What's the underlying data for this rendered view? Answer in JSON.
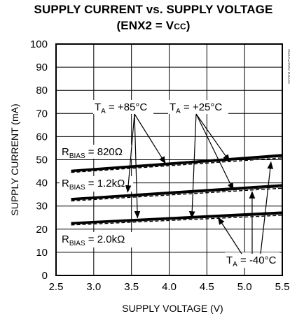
{
  "chart_data": {
    "type": "line",
    "title_line1": "SUPPLY CURRENT vs. SUPPLY VOLTAGE",
    "title_line2_prefix": "(ENX2 = V",
    "title_line2_sub": "CC",
    "title_line2_suffix": ")",
    "xlabel": "SUPPLY VOLTAGE (V)",
    "ylabel": "SUPPLY CURRENT (mA)",
    "xlim": [
      2.5,
      5.5
    ],
    "ylim": [
      0,
      100
    ],
    "xticks": [
      "2.5",
      "3.0",
      "3.5",
      "4.0",
      "4.5",
      "5.0",
      "5.5"
    ],
    "yticks": [
      "0",
      "10",
      "20",
      "30",
      "40",
      "50",
      "60",
      "70",
      "80",
      "90",
      "100"
    ],
    "grid": true,
    "x": [
      2.7,
      5.5
    ],
    "series": [
      {
        "values": [
          45.2,
          52.0
        ],
        "rbias": "820",
        "temp": "+85"
      },
      {
        "values": [
          44.8,
          51.4
        ],
        "rbias": "820",
        "temp": "+25"
      },
      {
        "values": [
          44.5,
          50.8
        ],
        "rbias": "820",
        "temp": "-40"
      },
      {
        "values": [
          33.0,
          39.0
        ],
        "rbias": "1.2k",
        "temp": "+85"
      },
      {
        "values": [
          32.6,
          38.3
        ],
        "rbias": "1.2k",
        "temp": "+25"
      },
      {
        "values": [
          32.2,
          37.7
        ],
        "rbias": "1.2k",
        "temp": "-40"
      },
      {
        "values": [
          22.6,
          27.2
        ],
        "rbias": "2.0k",
        "temp": "+85"
      },
      {
        "values": [
          22.2,
          26.6
        ],
        "rbias": "2.0k",
        "temp": "+25"
      },
      {
        "values": [
          21.8,
          26.0
        ],
        "rbias": "2.0k",
        "temp": "-40"
      }
    ],
    "annotations": {
      "ta85": {
        "main": "T",
        "sub": "A",
        "rest": " = +85°C"
      },
      "ta25": {
        "main": "T",
        "sub": "A",
        "rest": " = +25°C"
      },
      "ta40": {
        "main": "T",
        "sub": "A",
        "rest": " = -40°C"
      },
      "rb820": {
        "main": "R",
        "sub": "BIAS",
        "rest": " = 820Ω"
      },
      "rb12": {
        "main": "R",
        "sub": "BIAS",
        "rest": " = 1.2kΩ"
      },
      "rb20": {
        "main": "R",
        "sub": "BIAS",
        "rest": " = 2.0kΩ"
      }
    },
    "watermark": "MAX2990 toc05"
  }
}
